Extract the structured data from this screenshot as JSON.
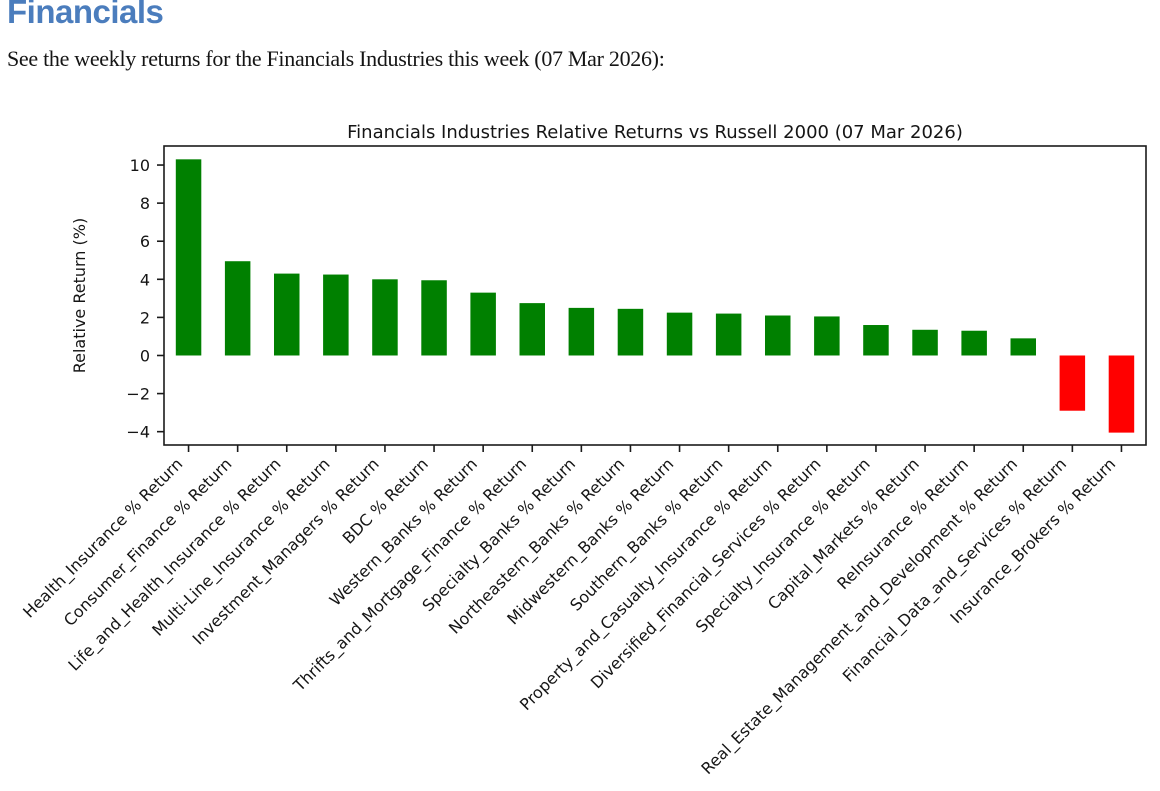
{
  "page": {
    "title": "Financials",
    "intro": "See the weekly returns for the Financials Industries this week (07 Mar 2026):"
  },
  "chart_data": {
    "type": "bar",
    "title": "Financials Industries Relative Returns vs Russell 2000 (07 Mar 2026)",
    "xlabel": "",
    "ylabel": "Relative Return (%)",
    "categories": [
      "Health_Insurance % Return",
      "Consumer_Finance % Return",
      "Life_and_Health_Insurance % Return",
      "Multi-Line_Insurance % Return",
      "Investment_Managers % Return",
      "BDC % Return",
      "Western_Banks % Return",
      "Thrifts_and_Mortgage_Finance % Return",
      "Specialty_Banks % Return",
      "Northeastern_Banks % Return",
      "Midwestern_Banks % Return",
      "Southern_Banks % Return",
      "Property_and_Casualty_Insurance % Return",
      "Diversified_Financial_Services % Return",
      "Specialty_Insurance % Return",
      "Capital_Markets % Return",
      "ReInsurance % Return",
      "Real_Estate_Management_and_Development % Return",
      "Financial_Data_and_Services % Return",
      "Insurance_Brokers % Return"
    ],
    "values": [
      10.3,
      4.95,
      4.3,
      4.25,
      4.0,
      3.95,
      3.3,
      2.75,
      2.5,
      2.45,
      2.25,
      2.2,
      2.1,
      2.05,
      1.6,
      1.35,
      1.3,
      0.9,
      -2.9,
      -4.05
    ],
    "yticks": [
      10,
      8,
      6,
      4,
      2,
      0,
      -2,
      -4
    ],
    "ylim": [
      -4.7,
      11.0
    ],
    "grid": false,
    "legend": "none",
    "bar_rotation_deg": 45,
    "colors": {
      "positive": "#008000",
      "negative": "#ff0000",
      "axis": "#1a1a1a",
      "heading": "#4b7dbd"
    }
  }
}
